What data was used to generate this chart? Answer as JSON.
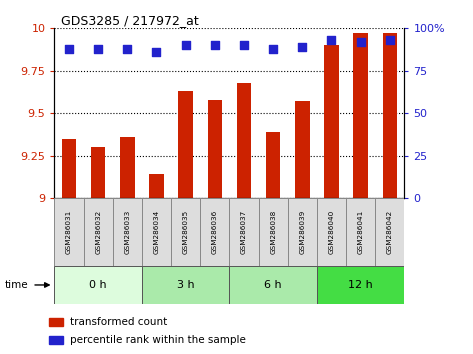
{
  "title": "GDS3285 / 217972_at",
  "samples": [
    "GSM286031",
    "GSM286032",
    "GSM286033",
    "GSM286034",
    "GSM286035",
    "GSM286036",
    "GSM286037",
    "GSM286038",
    "GSM286039",
    "GSM286040",
    "GSM286041",
    "GSM286042"
  ],
  "bar_values": [
    9.35,
    9.3,
    9.36,
    9.14,
    9.63,
    9.58,
    9.68,
    9.39,
    9.57,
    9.9,
    9.97,
    9.97
  ],
  "percentile_values": [
    88,
    88,
    88,
    86,
    90,
    90,
    90,
    88,
    89,
    93,
    92,
    93
  ],
  "bar_color": "#cc2200",
  "percentile_color": "#2222cc",
  "ylim": [
    9.0,
    10.0
  ],
  "yticks": [
    9.0,
    9.25,
    9.5,
    9.75,
    10.0
  ],
  "ytick_labels": [
    "9",
    "9.25",
    "9.5",
    "9.75",
    "10"
  ],
  "right_yticks": [
    0,
    25,
    50,
    75,
    100
  ],
  "right_ytick_labels": [
    "0",
    "25",
    "50",
    "75",
    "100%"
  ],
  "time_groups": [
    {
      "label": "0 h",
      "start": 0,
      "end": 3,
      "color": "#ddfcdd"
    },
    {
      "label": "3 h",
      "start": 3,
      "end": 6,
      "color": "#aaeaaa"
    },
    {
      "label": "6 h",
      "start": 6,
      "end": 9,
      "color": "#aaeaaa"
    },
    {
      "label": "12 h",
      "start": 9,
      "end": 12,
      "color": "#44dd44"
    }
  ],
  "legend_bar_label": "transformed count",
  "legend_pct_label": "percentile rank within the sample",
  "xlabel_time": "time",
  "bar_width": 0.5
}
